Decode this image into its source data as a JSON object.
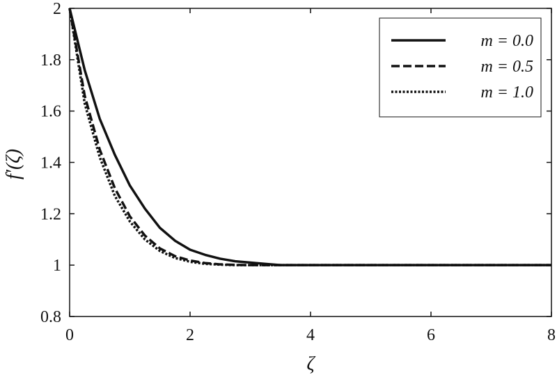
{
  "chart_data": {
    "type": "line",
    "title": "",
    "xlabel": "ζ",
    "ylabel": "f′(ζ)",
    "xlim": [
      0,
      8
    ],
    "ylim": [
      0.8,
      2
    ],
    "xticks": [
      0,
      2,
      4,
      6,
      8
    ],
    "yticks": [
      0.8,
      1,
      1.2,
      1.4,
      1.6,
      1.8,
      2
    ],
    "xtick_labels": [
      "0",
      "2",
      "4",
      "6",
      "8"
    ],
    "ytick_labels": [
      "0.8",
      "1",
      "1.2",
      "1.4",
      "1.6",
      "1.8",
      "2"
    ],
    "grid": false,
    "legend_position": "top-right",
    "series": [
      {
        "name": "m = 0.0",
        "style": "solid",
        "color": "#111111",
        "x": [
          0,
          0.25,
          0.5,
          0.75,
          1.0,
          1.25,
          1.5,
          1.75,
          2.0,
          2.25,
          2.5,
          2.75,
          3.0,
          3.25,
          3.5,
          4,
          5,
          6,
          7,
          8
        ],
        "y": [
          2.0,
          1.76,
          1.57,
          1.43,
          1.31,
          1.22,
          1.145,
          1.095,
          1.06,
          1.04,
          1.025,
          1.015,
          1.01,
          1.005,
          1.0,
          1.0,
          1.0,
          1.0,
          1.0,
          1.0
        ]
      },
      {
        "name": "m = 0.5",
        "style": "dashed",
        "color": "#111111",
        "x": [
          0,
          0.25,
          0.5,
          0.75,
          1.0,
          1.25,
          1.5,
          1.75,
          2.0,
          2.25,
          2.5,
          2.75,
          3.0,
          3.25,
          3.5,
          4,
          5,
          6,
          7,
          8
        ],
        "y": [
          2.0,
          1.66,
          1.45,
          1.3,
          1.19,
          1.115,
          1.065,
          1.035,
          1.018,
          1.008,
          1.003,
          1.001,
          1.0,
          1.0,
          1.0,
          1.0,
          1.0,
          1.0,
          1.0,
          1.0
        ]
      },
      {
        "name": "m = 1.0",
        "style": "dotted",
        "color": "#111111",
        "x": [
          0,
          0.25,
          0.5,
          0.75,
          1.0,
          1.25,
          1.5,
          1.75,
          2.0,
          2.25,
          2.5,
          2.75,
          3.0,
          3.25,
          3.5,
          4,
          5,
          6,
          7,
          8
        ],
        "y": [
          2.0,
          1.63,
          1.42,
          1.27,
          1.17,
          1.1,
          1.055,
          1.028,
          1.013,
          1.005,
          1.002,
          1.0,
          1.0,
          1.0,
          1.0,
          1.0,
          1.0,
          1.0,
          1.0,
          1.0
        ]
      }
    ]
  }
}
